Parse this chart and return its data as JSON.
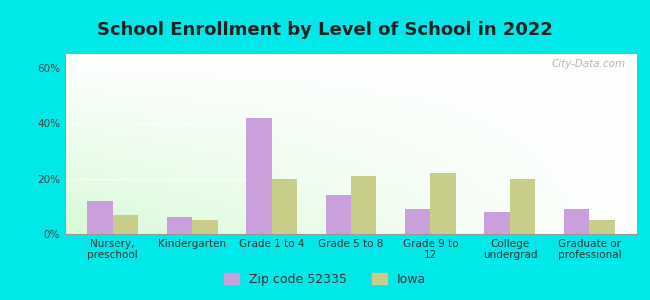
{
  "title": "School Enrollment by Level of School in 2022",
  "categories": [
    "Nursery,\npreschool",
    "Kindergarten",
    "Grade 1 to 4",
    "Grade 5 to 8",
    "Grade 9 to\n12",
    "College\nundergrad",
    "Graduate or\nprofessional"
  ],
  "zip_values": [
    12,
    6,
    42,
    14,
    9,
    8,
    9
  ],
  "iowa_values": [
    7,
    5,
    20,
    21,
    22,
    20,
    5
  ],
  "zip_color": "#c9a0dc",
  "iowa_color": "#c8cd8a",
  "background_outer": "#00e8e8",
  "ylim": [
    0,
    65
  ],
  "yticks": [
    0,
    20,
    40,
    60
  ],
  "ytick_labels": [
    "0%",
    "20%",
    "40%",
    "60%"
  ],
  "legend_zip_label": "Zip code 52335",
  "legend_iowa_label": "Iowa",
  "bar_width": 0.32,
  "title_fontsize": 13,
  "tick_fontsize": 7.5,
  "legend_fontsize": 9,
  "watermark": "City-Data.com"
}
